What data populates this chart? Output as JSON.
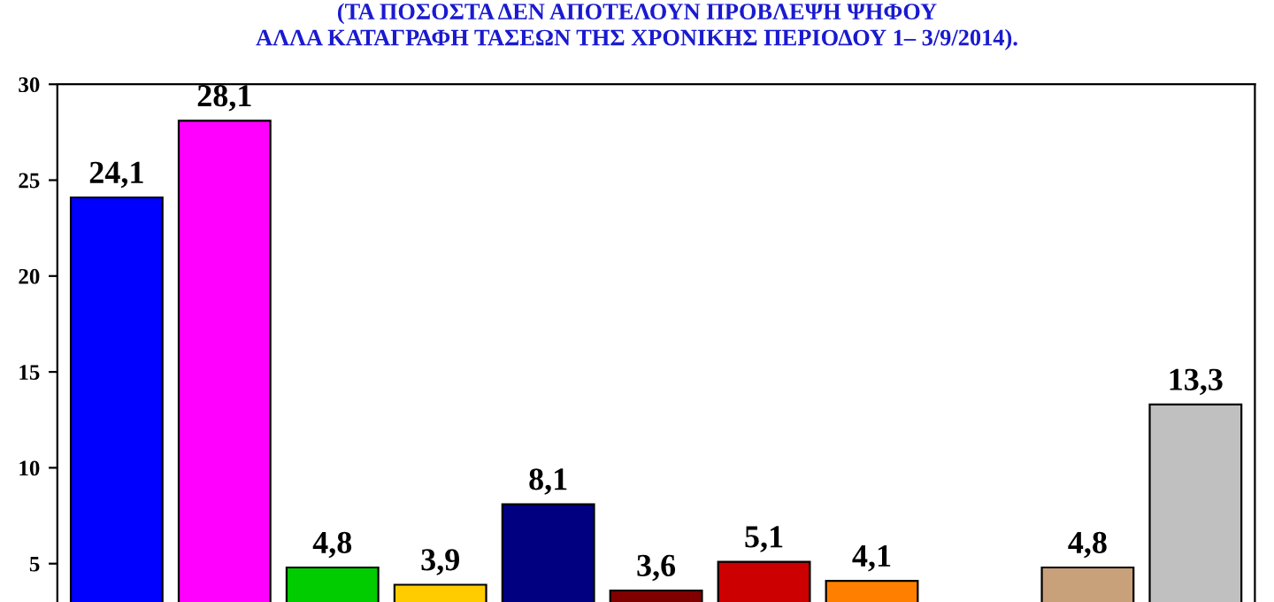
{
  "chart_data": {
    "type": "bar",
    "subtitle": "(ΤΑ ΠΟΣΟΣΤΑ ΔΕΝ ΑΠΟΤΕΛΟΥΝ ΠΡΟΒΛΕΨΗ ΨΗΦΟΥ\nΑΛΛΑ ΚΑΤΑΓΡΑΦΗ ΤΑΣΕΩΝ ΤΗΣ ΧΡΟΝΙΚΗΣ ΠΕΡΙΟΔΟΥ 1– 3/9/2014).",
    "categories": [
      null,
      null,
      null,
      null,
      null,
      null,
      null,
      null,
      null,
      null,
      null
    ],
    "values": [
      24.1,
      28.1,
      4.8,
      3.9,
      8.1,
      3.6,
      5.1,
      4.1,
      null,
      4.8,
      13.3
    ],
    "colors": [
      "#0000ff",
      "#ff00ff",
      "#00cc00",
      "#ffcc00",
      "#000080",
      "#800000",
      "#cc0000",
      "#ff8000",
      "#808080",
      "#c8a07a",
      "#c0c0c0"
    ],
    "value_labels": [
      "24,1",
      "28,1",
      "4,8",
      "3,9",
      "8,1",
      "3,6",
      "5,1",
      "4,1",
      null,
      "4,8",
      "13,3"
    ],
    "ylim": [
      3,
      30
    ],
    "yticks": [
      5,
      10,
      15,
      20,
      25,
      30
    ],
    "grid": false
  }
}
